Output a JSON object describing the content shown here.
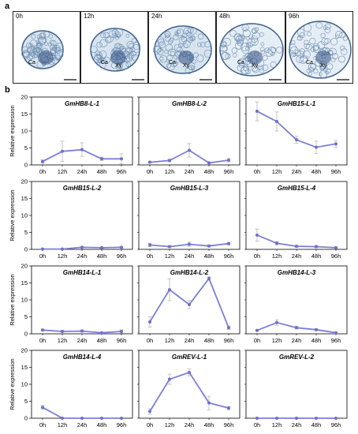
{
  "panel_a_label": "a",
  "panel_b_label": "b",
  "micrographs": [
    {
      "time": "0h",
      "labels": [
        "Ca"
      ]
    },
    {
      "time": "12h",
      "labels": [
        "Ca",
        "Xy"
      ]
    },
    {
      "time": "24h",
      "labels": [
        "Ca",
        "Xy"
      ]
    },
    {
      "time": "48h",
      "labels": [
        "Ca",
        "Xy"
      ]
    },
    {
      "time": "96h",
      "labels": [
        "Ca",
        "Xy"
      ]
    }
  ],
  "colors": {
    "line": "#7b7fd6",
    "marker": "#6c70c8",
    "error": "#b8b8b8",
    "axis": "#000000"
  },
  "chart_data": [
    {
      "type": "line",
      "title": "GmHB8-L-1",
      "ylabel": "Relative expression",
      "categories": [
        "0h",
        "12h",
        "24h",
        "48h",
        "96h"
      ],
      "ylim": [
        0,
        20
      ],
      "yticks": [
        0,
        5,
        10,
        15,
        20
      ],
      "values": [
        1,
        4,
        4.5,
        1.8,
        1.8
      ],
      "errors": [
        0.5,
        3,
        2,
        0.5,
        1.5
      ]
    },
    {
      "type": "line",
      "title": "GmHB8-L-2",
      "ylabel": "",
      "categories": [
        "0h",
        "12h",
        "24h",
        "48h",
        "96h"
      ],
      "ylim": [
        0,
        20
      ],
      "yticks": [
        0,
        5,
        10,
        15,
        20
      ],
      "values": [
        0.8,
        1.3,
        4.3,
        0.6,
        1.4
      ],
      "errors": [
        0.2,
        0.4,
        2,
        0.2,
        0.5
      ]
    },
    {
      "type": "line",
      "title": "GmHB15-L-1",
      "ylabel": "",
      "categories": [
        "0h",
        "12h",
        "24h",
        "48h",
        "96h"
      ],
      "ylim": [
        0,
        20
      ],
      "yticks": [
        0,
        5,
        10,
        15,
        20
      ],
      "values": [
        15.8,
        12.8,
        7.4,
        5.2,
        6.2
      ],
      "errors": [
        2.8,
        2.8,
        1,
        1.8,
        1
      ]
    },
    {
      "type": "line",
      "title": "GmHB15-L-2",
      "ylabel": "Relative expression",
      "categories": [
        "0h",
        "12h",
        "24h",
        "48h",
        "96h"
      ],
      "ylim": [
        0,
        20
      ],
      "yticks": [
        0,
        5,
        10,
        15,
        20
      ],
      "values": [
        0.1,
        0.1,
        0.6,
        0.5,
        0.6
      ],
      "errors": [
        0.1,
        0.1,
        0.2,
        0.2,
        0.2
      ]
    },
    {
      "type": "line",
      "title": "GmHB15-L-3",
      "ylabel": "",
      "categories": [
        "0h",
        "12h",
        "24h",
        "48h",
        "96h"
      ],
      "ylim": [
        0,
        20
      ],
      "yticks": [
        0,
        5,
        10,
        15,
        20
      ],
      "values": [
        1.3,
        0.8,
        1.5,
        1,
        1.7
      ],
      "errors": [
        0.5,
        0.3,
        0.6,
        0.3,
        0.4
      ]
    },
    {
      "type": "line",
      "title": "GmHB15-L-4",
      "ylabel": "",
      "categories": [
        "0h",
        "12h",
        "24h",
        "48h",
        "96h"
      ],
      "ylim": [
        0,
        20
      ],
      "yticks": [
        0,
        5,
        10,
        15,
        20
      ],
      "values": [
        4.2,
        1.8,
        0.9,
        0.8,
        0.5
      ],
      "errors": [
        1.8,
        0.5,
        0.3,
        0.3,
        0.2
      ]
    },
    {
      "type": "line",
      "title": "GmHB14-L-1",
      "ylabel": "Relative expression",
      "categories": [
        "0h",
        "12h",
        "24h",
        "48h",
        "96h"
      ],
      "ylim": [
        0,
        20
      ],
      "yticks": [
        0,
        5,
        10,
        15,
        20
      ],
      "values": [
        1.1,
        0.7,
        0.8,
        0.3,
        0.7
      ],
      "errors": [
        0.3,
        0.3,
        0.3,
        0.2,
        0.5
      ]
    },
    {
      "type": "line",
      "title": "GmHB14-L-2",
      "ylabel": "",
      "categories": [
        "0h",
        "12h",
        "24h",
        "48h",
        "96h"
      ],
      "ylim": [
        0,
        20
      ],
      "yticks": [
        0,
        5,
        10,
        15,
        20
      ],
      "values": [
        3.5,
        13,
        8.6,
        16.3,
        1.8
      ],
      "errors": [
        1.5,
        3.2,
        1.2,
        0.5,
        0.5
      ]
    },
    {
      "type": "line",
      "title": "GmHB14-L-3",
      "ylabel": "",
      "categories": [
        "0h",
        "12h",
        "24h",
        "48h",
        "96h"
      ],
      "ylim": [
        0,
        20
      ],
      "yticks": [
        0,
        5,
        10,
        15,
        20
      ],
      "values": [
        1,
        3.3,
        1.8,
        1.2,
        0.3
      ],
      "errors": [
        0.3,
        0.8,
        0.4,
        0.3,
        0.2
      ]
    },
    {
      "type": "line",
      "title": "GmHB14-L-4",
      "ylabel": "Relative expression",
      "categories": [
        "0h",
        "12h",
        "24h",
        "48h",
        "96h"
      ],
      "ylim": [
        0,
        20
      ],
      "yticks": [
        0,
        5,
        10,
        15,
        20
      ],
      "values": [
        3.2,
        0,
        0,
        0,
        0
      ],
      "errors": [
        0.6,
        0,
        0,
        0,
        0
      ]
    },
    {
      "type": "line",
      "title": "GmREV-L-1",
      "ylabel": "",
      "categories": [
        "0h",
        "12h",
        "24h",
        "48h",
        "96h"
      ],
      "ylim": [
        0,
        20
      ],
      "yticks": [
        0,
        5,
        10,
        15,
        20
      ],
      "values": [
        2,
        11.5,
        13.5,
        4.5,
        3
      ],
      "errors": [
        0.8,
        1.5,
        1,
        2,
        0.5
      ]
    },
    {
      "type": "line",
      "title": "GmREV-L-2",
      "ylabel": "",
      "categories": [
        "0h",
        "12h",
        "24h",
        "48h",
        "96h"
      ],
      "ylim": [
        0,
        20
      ],
      "yticks": [
        0,
        5,
        10,
        15,
        20
      ],
      "values": [
        0,
        0,
        0,
        0,
        0
      ],
      "errors": [
        0,
        0,
        0,
        0,
        0
      ]
    }
  ]
}
